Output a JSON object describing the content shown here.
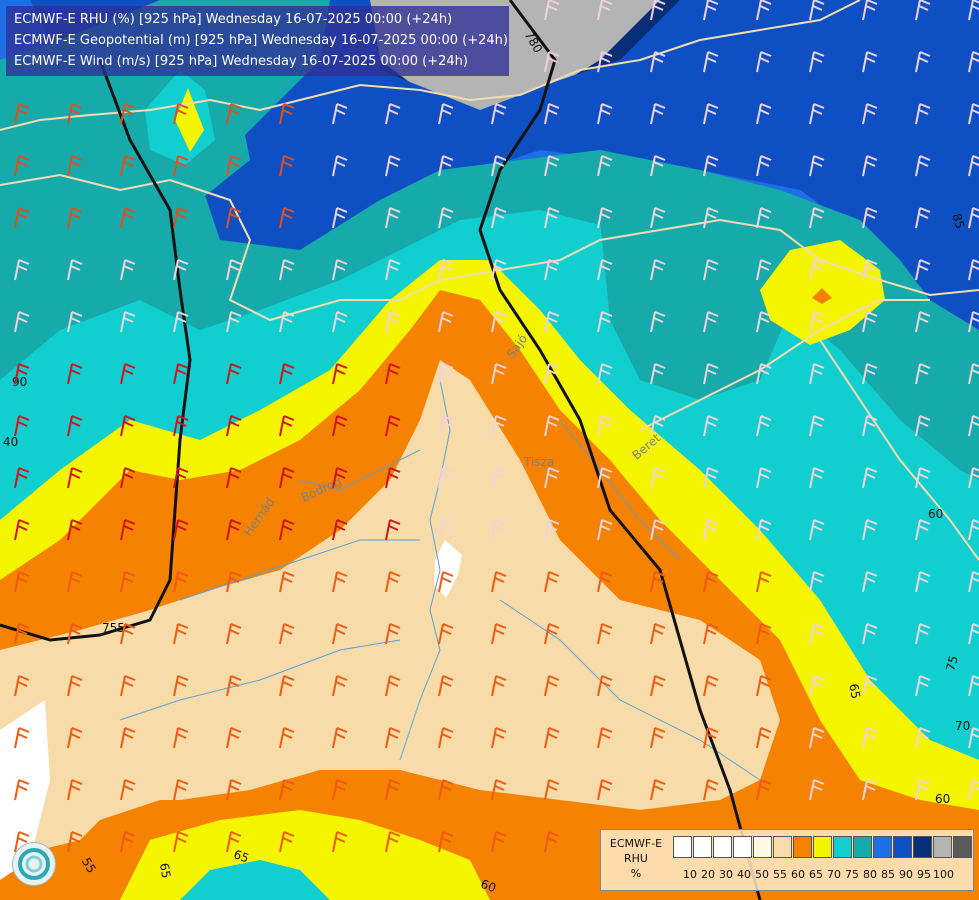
{
  "header": {
    "line1": "ECMWF-E RHU (%) [925 hPa] Wednesday 16-07-2025 00:00 (+24h)",
    "line2": "ECMWF-E Geopotential (m) [925 hPa] Wednesday 16-07-2025 00:00 (+24h)",
    "line3": "ECMWF-E Wind (m/s) [925 hPa] Wednesday 16-07-2025 00:00 (+24h)"
  },
  "legend": {
    "title_line1": "ECMWF-E",
    "title_line2": "RHU",
    "unit": "%",
    "ticks": [
      "10",
      "20",
      "30",
      "40",
      "50",
      "55",
      "60",
      "65",
      "70",
      "75",
      "80",
      "85",
      "90",
      "95",
      "100"
    ],
    "colors": [
      "#ffffff",
      "#ffffff",
      "#ffffff",
      "#ffffff",
      "#fff8e4",
      "#f7dca9",
      "#f58200",
      "#f5f500",
      "#12cfcf",
      "#16aaaa",
      "#1e6ee6",
      "#0e50c3",
      "#082e78",
      "#b4b4b4",
      "#5a5a5a"
    ]
  },
  "contour_labels": {
    "geo_780": "780",
    "geo_755": "755",
    "rhu_65_right": "65",
    "rhu_70_right": "70",
    "rhu_75_right": "75",
    "rhu_60_right": "60",
    "rhu_85_top": "85",
    "rhu_60_mid": "60",
    "rhu_55_bottom": "55",
    "rhu_65_bottom": "65",
    "rhu_60_bottom": "60",
    "rhu_65_left": "65",
    "rhu_90_left": "90",
    "rhu_40_left": "40"
  },
  "river_labels": {
    "tisza": "Tisza",
    "beret": "Beret",
    "sajo": "Sajó",
    "bodrog": "Bodrog",
    "hernad": "Hernád"
  },
  "colors": {
    "rhu_55": "#f7dca9",
    "rhu_60": "#f58200",
    "rhu_65": "#f5f500",
    "rhu_70": "#12cfcf",
    "rhu_75": "#16aaaa",
    "rhu_80": "#1e6ee6",
    "rhu_85": "#0e50c3",
    "rhu_90": "#082e78",
    "rhu_95": "#b4b4b4"
  }
}
